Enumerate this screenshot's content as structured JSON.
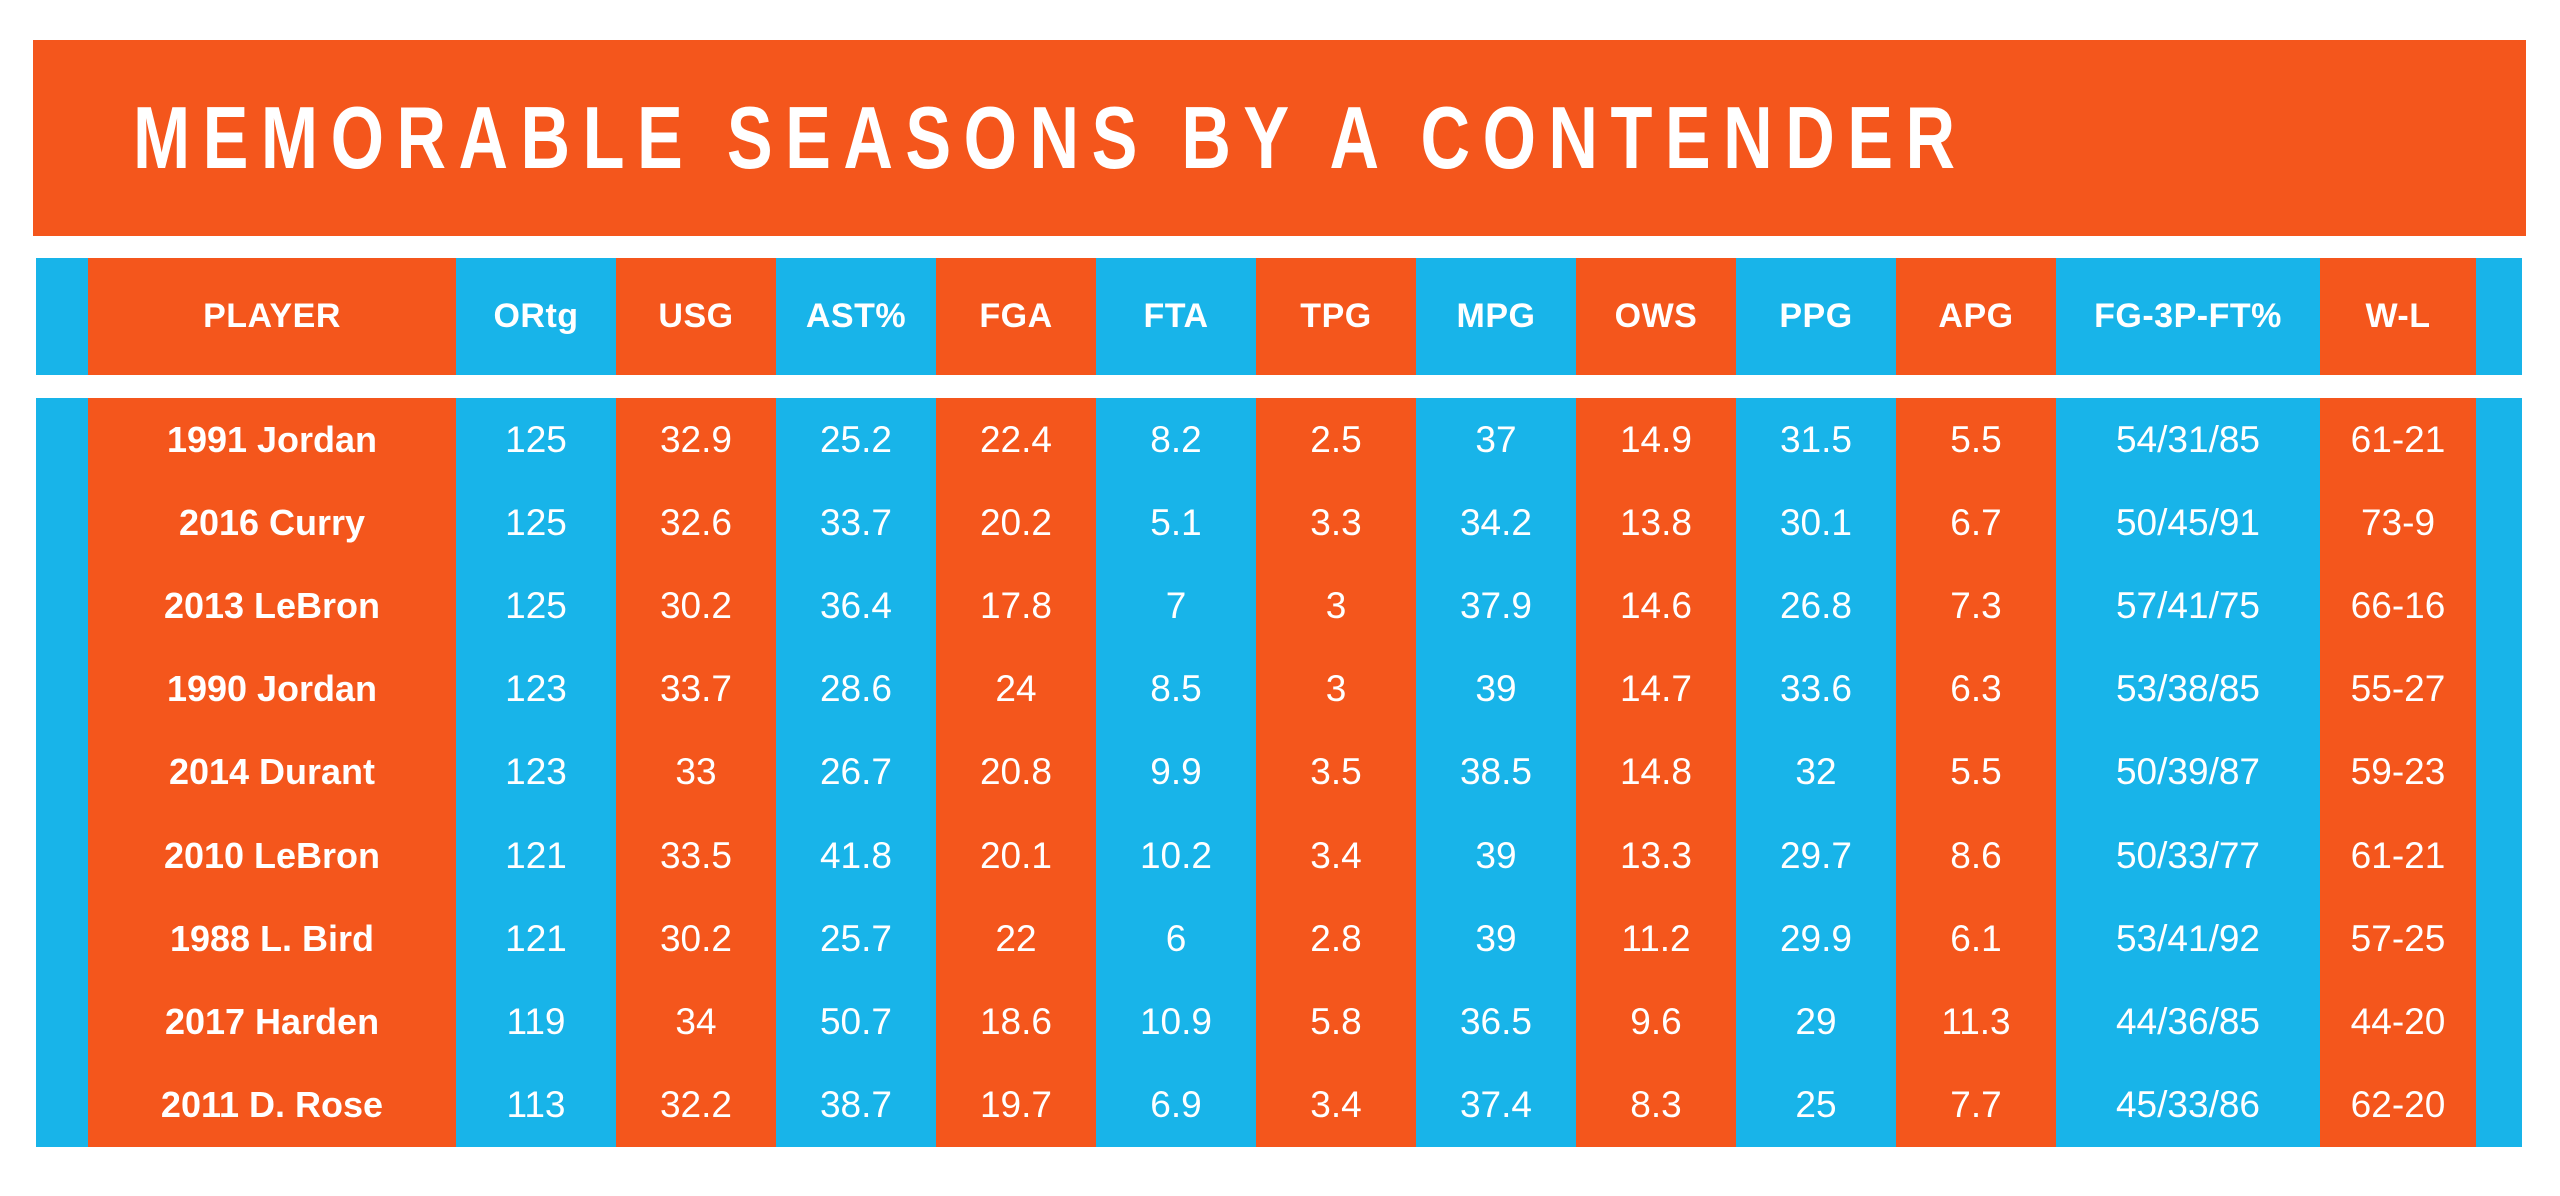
{
  "title": "MEMORABLE SEASONS BY A CONTENDER",
  "colors": {
    "orange": "#F4561C",
    "cyan": "#18B4E9",
    "text": "#FFFFFF",
    "background": "#FFFFFF"
  },
  "chart_data": {
    "type": "table",
    "title": "MEMORABLE SEASONS BY A CONTENDER",
    "legend_position": "none",
    "grid": false,
    "columns": [
      {
        "label": "PLAYER",
        "color": "orange"
      },
      {
        "label": "ORtg",
        "color": "cyan"
      },
      {
        "label": "USG",
        "color": "orange"
      },
      {
        "label": "AST%",
        "color": "cyan"
      },
      {
        "label": "FGA",
        "color": "orange"
      },
      {
        "label": "FTA",
        "color": "cyan"
      },
      {
        "label": "TPG",
        "color": "orange"
      },
      {
        "label": "MPG",
        "color": "cyan"
      },
      {
        "label": "OWS",
        "color": "orange"
      },
      {
        "label": "PPG",
        "color": "cyan"
      },
      {
        "label": "APG",
        "color": "orange"
      },
      {
        "label": "FG-3P-FT%",
        "color": "cyan"
      },
      {
        "label": "W-L",
        "color": "orange"
      }
    ],
    "rows": [
      [
        "1991 Jordan",
        "125",
        "32.9",
        "25.2",
        "22.4",
        "8.2",
        "2.5",
        "37",
        "14.9",
        "31.5",
        "5.5",
        "54/31/85",
        "61-21"
      ],
      [
        "2016 Curry",
        "125",
        "32.6",
        "33.7",
        "20.2",
        "5.1",
        "3.3",
        "34.2",
        "13.8",
        "30.1",
        "6.7",
        "50/45/91",
        "73-9"
      ],
      [
        "2013 LeBron",
        "125",
        "30.2",
        "36.4",
        "17.8",
        "7",
        "3",
        "37.9",
        "14.6",
        "26.8",
        "7.3",
        "57/41/75",
        "66-16"
      ],
      [
        "1990 Jordan",
        "123",
        "33.7",
        "28.6",
        "24",
        "8.5",
        "3",
        "39",
        "14.7",
        "33.6",
        "6.3",
        "53/38/85",
        "55-27"
      ],
      [
        "2014 Durant",
        "123",
        "33",
        "26.7",
        "20.8",
        "9.9",
        "3.5",
        "38.5",
        "14.8",
        "32",
        "5.5",
        "50/39/87",
        "59-23"
      ],
      [
        "2010 LeBron",
        "121",
        "33.5",
        "41.8",
        "20.1",
        "10.2",
        "3.4",
        "39",
        "13.3",
        "29.7",
        "8.6",
        "50/33/77",
        "61-21"
      ],
      [
        "1988 L. Bird",
        "121",
        "30.2",
        "25.7",
        "22",
        "6",
        "2.8",
        "39",
        "11.2",
        "29.9",
        "6.1",
        "53/41/92",
        "57-25"
      ],
      [
        "2017 Harden",
        "119",
        "34",
        "50.7",
        "18.6",
        "10.9",
        "5.8",
        "36.5",
        "9.6",
        "29",
        "11.3",
        "44/36/85",
        "44-20"
      ],
      [
        "2011 D. Rose",
        "113",
        "32.2",
        "38.7",
        "19.7",
        "6.9",
        "3.4",
        "37.4",
        "8.3",
        "25",
        "7.7",
        "45/33/86",
        "62-20"
      ]
    ]
  }
}
